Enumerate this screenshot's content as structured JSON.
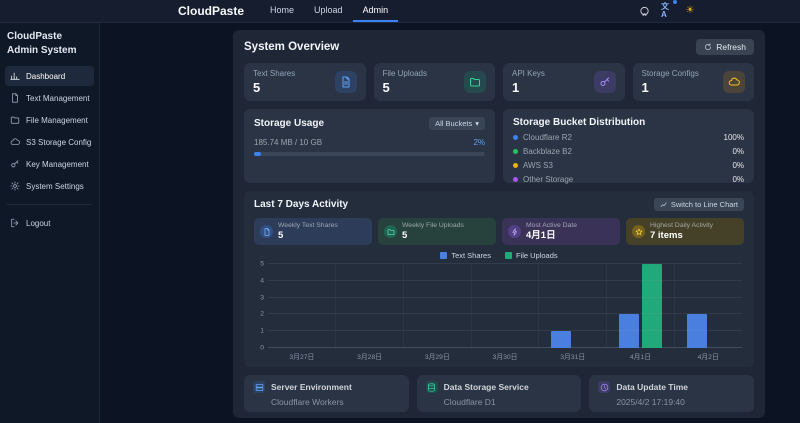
{
  "navbar": {
    "brand": "CloudPaste",
    "links": [
      {
        "label": "Home",
        "active": false
      },
      {
        "label": "Upload",
        "active": false
      },
      {
        "label": "Admin",
        "active": true
      }
    ],
    "icons": [
      "github-icon",
      "translate-icon",
      "sun-icon"
    ]
  },
  "sidebar": {
    "title": "CloudPaste Admin System",
    "items": [
      {
        "label": "Dashboard",
        "icon": "bar-chart-icon",
        "active": true
      },
      {
        "label": "Text Management",
        "icon": "document-icon",
        "active": false
      },
      {
        "label": "File Management",
        "icon": "folder-icon",
        "active": false
      },
      {
        "label": "S3 Storage Config",
        "icon": "cloud-icon",
        "active": false
      },
      {
        "label": "Key Management",
        "icon": "key-icon",
        "active": false
      },
      {
        "label": "System Settings",
        "icon": "gear-icon",
        "active": false
      }
    ],
    "logout_label": "Logout"
  },
  "overview": {
    "title": "System Overview",
    "refresh_label": "Refresh",
    "stats": [
      {
        "label": "Text Shares",
        "value": "5",
        "icon": "document-icon",
        "color": "#3b82f6"
      },
      {
        "label": "File Uploads",
        "value": "5",
        "icon": "folder-icon",
        "color": "#10b981"
      },
      {
        "label": "API Keys",
        "value": "1",
        "icon": "key-icon",
        "color": "#8b5cf6"
      },
      {
        "label": "Storage Configs",
        "value": "1",
        "icon": "cloud-icon",
        "color": "#f59e0b"
      }
    ]
  },
  "storage_usage": {
    "title": "Storage Usage",
    "bucket_filter_label": "All Buckets",
    "usage_text": "185.74 MB / 10 GB",
    "percent_text": "2%",
    "percent": 2,
    "bar_color": "#3b82f6"
  },
  "bucket_distribution": {
    "title": "Storage Bucket Distribution",
    "rows": [
      {
        "label": "Cloudflare R2",
        "value": "100%",
        "color": "#3b82f6"
      },
      {
        "label": "Backblaze B2",
        "value": "0%",
        "color": "#22c55e"
      },
      {
        "label": "AWS S3",
        "value": "0%",
        "color": "#eab308"
      },
      {
        "label": "Other Storage",
        "value": "0%",
        "color": "#a855f7"
      }
    ]
  },
  "activity": {
    "title": "Last 7 Days Activity",
    "switch_label": "Switch to Line Chart",
    "cards": [
      {
        "label": "Weekly Text Shares",
        "value": "5",
        "icon": "document-icon",
        "theme": "blue"
      },
      {
        "label": "Weekly File Uploads",
        "value": "5",
        "icon": "folder-icon",
        "theme": "green"
      },
      {
        "label": "Most Active Date",
        "value": "4月1日",
        "icon": "lightning-icon",
        "theme": "purple"
      },
      {
        "label": "Highest Daily Activity",
        "value": "7 items",
        "icon": "star-icon",
        "theme": "yellow"
      }
    ]
  },
  "chart_data": {
    "type": "bar",
    "categories": [
      "3月27日",
      "3月28日",
      "3月29日",
      "3月30日",
      "3月31日",
      "4月1日",
      "4月2日"
    ],
    "series": [
      {
        "name": "Text Shares",
        "color": "#4a7fe0",
        "values": [
          0,
          0,
          0,
          0,
          1,
          2,
          2
        ]
      },
      {
        "name": "File Uploads",
        "color": "#21a97a",
        "values": [
          0,
          0,
          0,
          0,
          0,
          5,
          0
        ]
      }
    ],
    "title": "Last 7 Days Activity",
    "xlabel": "",
    "ylabel": "",
    "ylim": [
      0,
      5
    ],
    "yticks": [
      0,
      1,
      2,
      3,
      4,
      5
    ],
    "grid": true,
    "legend_position": "top"
  },
  "footer_cards": [
    {
      "label": "Server Environment",
      "value": "Cloudflare Workers",
      "icon": "server-icon",
      "color": "#3b82f6"
    },
    {
      "label": "Data Storage Service",
      "value": "Cloudflare D1",
      "icon": "database-icon",
      "color": "#10b981"
    },
    {
      "label": "Data Update Time",
      "value": "2025/4/2 17:19:40",
      "icon": "clock-icon",
      "color": "#8b5cf6"
    }
  ]
}
